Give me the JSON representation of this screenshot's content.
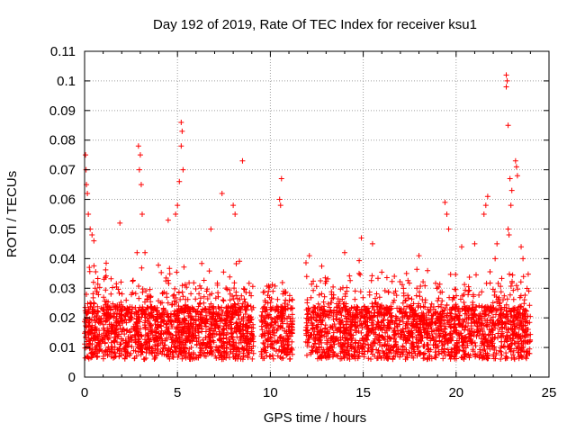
{
  "chart_data": {
    "type": "scatter",
    "title": "Day 192 of 2019, Rate Of TEC Index for receiver ksu1",
    "xlabel": "GPS time / hours",
    "ylabel": "ROTI / TECUs",
    "xlim": [
      0,
      25
    ],
    "ylim": [
      0,
      0.11
    ],
    "xticks": [
      0,
      5,
      10,
      15,
      20,
      25
    ],
    "xtick_labels": [
      "0",
      "5",
      "10",
      "15",
      "20",
      "25"
    ],
    "yticks": [
      0,
      0.01,
      0.02,
      0.03,
      0.04,
      0.05,
      0.06,
      0.07,
      0.08,
      0.09,
      0.1,
      0.11
    ],
    "ytick_labels": [
      "0",
      "0.01",
      "0.02",
      "0.03",
      "0.04",
      "0.05",
      "0.06",
      "0.07",
      "0.08",
      "0.09",
      "0.1",
      "0.11"
    ],
    "grid": true,
    "marker": "+",
    "color": "#ff0000",
    "data_gaps_hours": [
      [
        9.1,
        9.5
      ],
      [
        11.2,
        11.9
      ]
    ],
    "series": [
      {
        "name": "ROTI",
        "points": [
          [
            0.05,
            0.075
          ],
          [
            0.08,
            0.07
          ],
          [
            0.1,
            0.065
          ],
          [
            0.15,
            0.062
          ],
          [
            0.2,
            0.055
          ],
          [
            0.3,
            0.05
          ],
          [
            0.4,
            0.048
          ],
          [
            0.5,
            0.046
          ],
          [
            2.9,
            0.078
          ],
          [
            3.0,
            0.075
          ],
          [
            2.95,
            0.07
          ],
          [
            3.05,
            0.065
          ],
          [
            3.1,
            0.055
          ],
          [
            5.2,
            0.086
          ],
          [
            5.25,
            0.083
          ],
          [
            5.2,
            0.078
          ],
          [
            5.3,
            0.07
          ],
          [
            5.1,
            0.066
          ],
          [
            5.0,
            0.058
          ],
          [
            4.9,
            0.055
          ],
          [
            7.4,
            0.062
          ],
          [
            8.5,
            0.073
          ],
          [
            10.6,
            0.067
          ],
          [
            10.5,
            0.06
          ],
          [
            10.55,
            0.058
          ],
          [
            1.9,
            0.052
          ],
          [
            4.5,
            0.053
          ],
          [
            6.8,
            0.05
          ],
          [
            8.0,
            0.058
          ],
          [
            8.1,
            0.055
          ],
          [
            12.1,
            0.041
          ],
          [
            14.0,
            0.042
          ],
          [
            14.9,
            0.047
          ],
          [
            15.5,
            0.045
          ],
          [
            18.0,
            0.041
          ],
          [
            19.4,
            0.059
          ],
          [
            19.5,
            0.055
          ],
          [
            19.6,
            0.05
          ],
          [
            20.3,
            0.044
          ],
          [
            21.0,
            0.045
          ],
          [
            21.5,
            0.055
          ],
          [
            21.6,
            0.058
          ],
          [
            21.7,
            0.061
          ],
          [
            22.2,
            0.045
          ],
          [
            22.1,
            0.04
          ],
          [
            22.7,
            0.102
          ],
          [
            22.75,
            0.1
          ],
          [
            22.7,
            0.098
          ],
          [
            22.8,
            0.085
          ],
          [
            22.9,
            0.067
          ],
          [
            23.0,
            0.063
          ],
          [
            22.95,
            0.058
          ],
          [
            23.2,
            0.073
          ],
          [
            23.25,
            0.071
          ],
          [
            23.3,
            0.068
          ],
          [
            22.8,
            0.05
          ],
          [
            22.85,
            0.048
          ],
          [
            23.5,
            0.044
          ],
          [
            23.6,
            0.04
          ]
        ]
      }
    ]
  }
}
